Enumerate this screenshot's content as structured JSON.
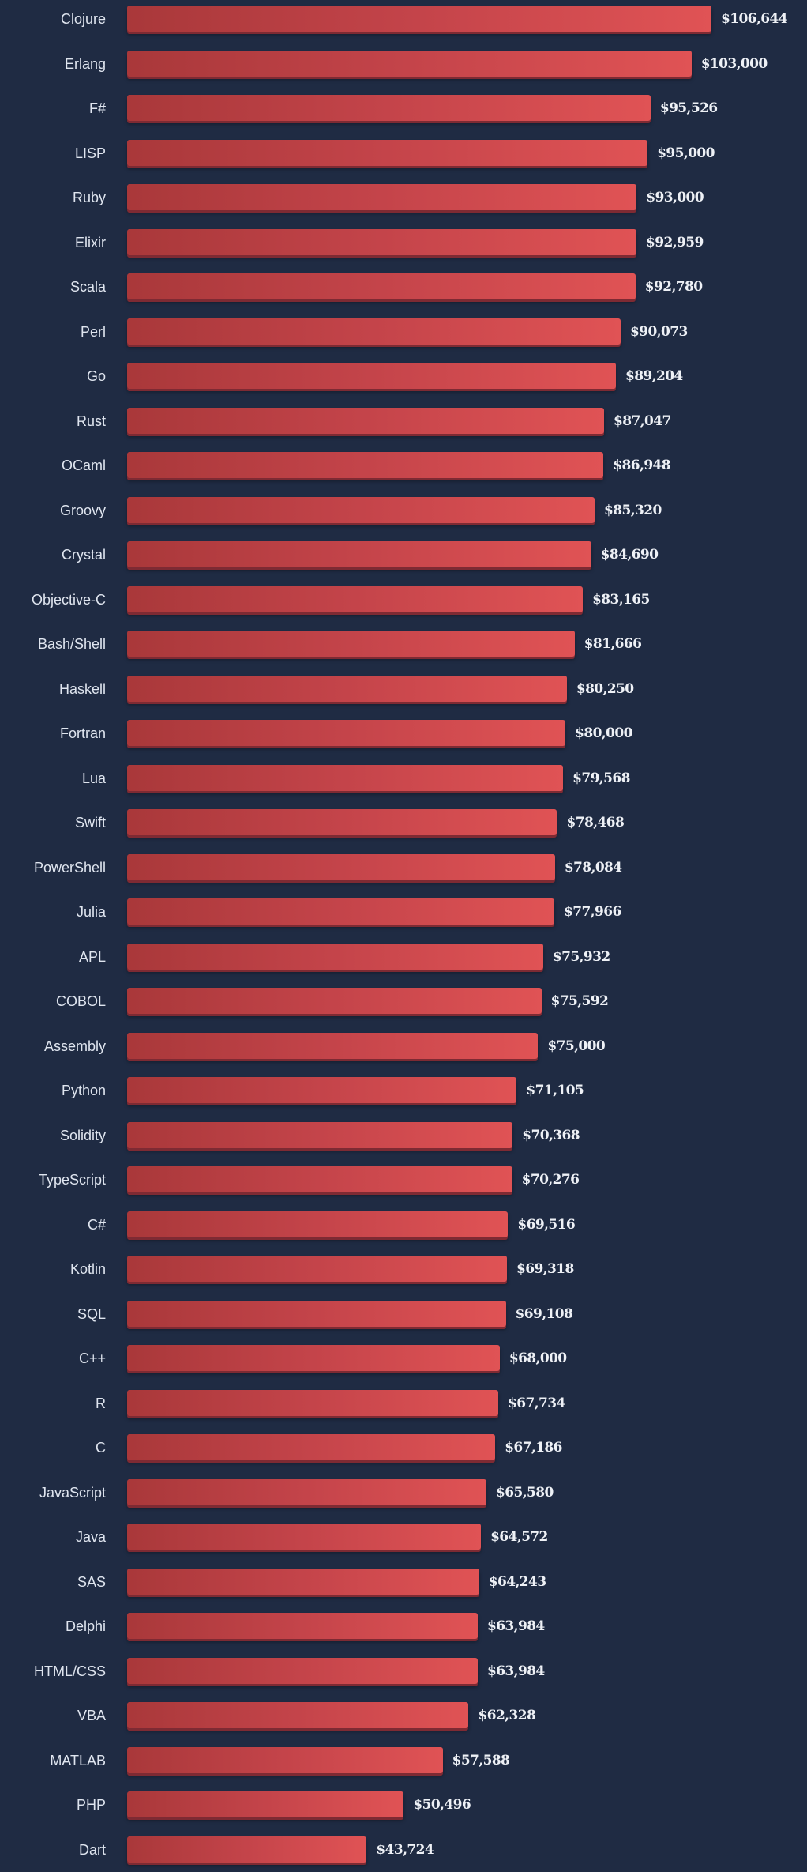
{
  "chart_data": {
    "type": "bar",
    "orientation": "horizontal",
    "categories": [
      "Clojure",
      "Erlang",
      "F#",
      "LISP",
      "Ruby",
      "Elixir",
      "Scala",
      "Perl",
      "Go",
      "Rust",
      "OCaml",
      "Groovy",
      "Crystal",
      "Objective-C",
      "Bash/Shell",
      "Haskell",
      "Fortran",
      "Lua",
      "Swift",
      "PowerShell",
      "Julia",
      "APL",
      "COBOL",
      "Assembly",
      "Python",
      "Solidity",
      "TypeScript",
      "C#",
      "Kotlin",
      "SQL",
      "C++",
      "R",
      "C",
      "JavaScript",
      "Java",
      "SAS",
      "Delphi",
      "HTML/CSS",
      "VBA",
      "MATLAB",
      "PHP",
      "Dart"
    ],
    "values": [
      106644,
      103000,
      95526,
      95000,
      93000,
      92959,
      92780,
      90073,
      89204,
      87047,
      86948,
      85320,
      84690,
      83165,
      81666,
      80250,
      80000,
      79568,
      78468,
      78084,
      77966,
      75932,
      75592,
      75000,
      71105,
      70368,
      70276,
      69516,
      69318,
      69108,
      68000,
      67734,
      67186,
      65580,
      64572,
      64243,
      63984,
      63984,
      62328,
      57588,
      50496,
      43724
    ],
    "value_labels": [
      "$106,644",
      "$103,000",
      "$95,526",
      "$95,000",
      "$93,000",
      "$92,959",
      "$92,780",
      "$90,073",
      "$89,204",
      "$87,047",
      "$86,948",
      "$85,320",
      "$84,690",
      "$83,165",
      "$81,666",
      "$80,250",
      "$80,000",
      "$79,568",
      "$78,468",
      "$78,084",
      "$77,966",
      "$75,932",
      "$75,592",
      "$75,000",
      "$71,105",
      "$70,368",
      "$70,276",
      "$69,516",
      "$69,318",
      "$69,108",
      "$68,000",
      "$67,734",
      "$67,186",
      "$65,580",
      "$64,572",
      "$64,243",
      "$63,984",
      "$63,984",
      "$62,328",
      "$57,588",
      "$50,496",
      "$43,724"
    ],
    "xlim": [
      0,
      106644
    ],
    "grid": false,
    "colors": {
      "background": "#1f2b43",
      "bar_start": "#a9383a",
      "bar_end": "#e05355",
      "label": "#dfe5ef",
      "value": "#eef1f6"
    }
  }
}
